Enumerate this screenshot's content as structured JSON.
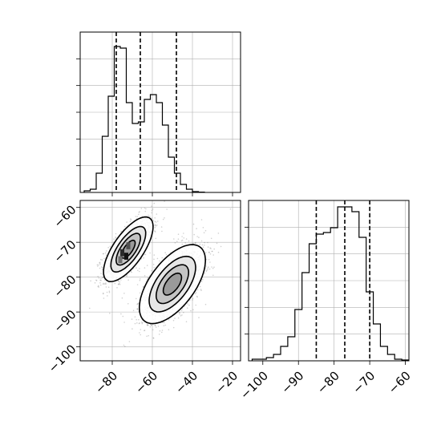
{
  "chart_data": [
    {
      "type": "histogram",
      "panel": "top-left",
      "parameter_axis": "x",
      "xlim": [
        -96,
        -16
      ],
      "ylim": [
        0,
        1
      ],
      "grid": true,
      "y_tick_labels_shown": false,
      "bin_width": 3,
      "bin_edges_start": -94,
      "values": [
        0.01,
        0.02,
        0.12,
        0.35,
        0.6,
        0.91,
        0.9,
        0.56,
        0.43,
        0.44,
        0.58,
        0.61,
        0.56,
        0.42,
        0.22,
        0.12,
        0.05,
        0.02,
        0.005,
        0.002
      ],
      "dashed_lines": [
        -78,
        -66,
        -48
      ]
    },
    {
      "type": "scatter-density",
      "panel": "bottom-left",
      "xlim": [
        -96,
        -16
      ],
      "ylim": [
        -104,
        -58
      ],
      "x_ticks": [
        -80,
        -60,
        -40,
        -20
      ],
      "y_ticks": [
        -60,
        -70,
        -80,
        -90,
        -100
      ],
      "x_tick_labels": [
        "−80",
        "−60",
        "−40",
        "−20"
      ],
      "y_tick_labels": [
        "−60",
        "−70",
        "−80",
        "−90",
        "−100"
      ],
      "grid": true,
      "clusters": [
        {
          "center": [
            -72,
            -72
          ],
          "sd": [
            6,
            4.5
          ],
          "rho": 0.7,
          "n": 1400
        },
        {
          "center": [
            -50,
            -82
          ],
          "sd": [
            8,
            5.5
          ],
          "rho": 0.6,
          "n": 1600
        }
      ],
      "contour_levels": [
        0.12,
        0.35,
        0.6,
        0.85
      ],
      "color": "#000000"
    },
    {
      "type": "histogram",
      "panel": "bottom-right",
      "parameter_axis": "x",
      "xlim": [
        -104,
        -59
      ],
      "ylim": [
        0,
        1
      ],
      "x_ticks": [
        -100,
        -90,
        -80,
        -70,
        -60
      ],
      "x_tick_labels": [
        "−100",
        "−90",
        "−80",
        "−70",
        "−60"
      ],
      "grid": true,
      "y_tick_labels_shown": false,
      "bin_width": 2,
      "bin_edges_start": -103,
      "values": [
        0.01,
        0.01,
        0.02,
        0.04,
        0.09,
        0.15,
        0.32,
        0.55,
        0.73,
        0.79,
        0.8,
        0.83,
        0.96,
        0.96,
        0.93,
        0.77,
        0.43,
        0.23,
        0.09,
        0.04,
        0.01,
        0.005
      ],
      "dashed_lines": [
        -85,
        -77,
        -70
      ]
    }
  ]
}
